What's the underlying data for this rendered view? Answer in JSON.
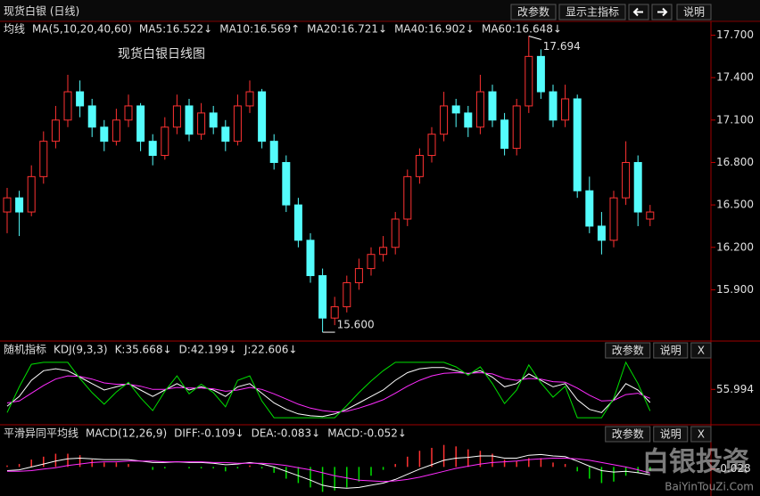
{
  "header": {
    "title": "现货白银 (日线)",
    "buttons": [
      "改参数",
      "显示主指标",
      "说明"
    ]
  },
  "chart_data": [
    {
      "type": "candlestick",
      "legend_label": "均线",
      "legend_params": "MA(5,10,20,40,60)",
      "ma": [
        {
          "name": "MA5:16.522↓",
          "color": "#ffffff"
        },
        {
          "name": "MA10:16.569↑",
          "color": "#ff2cff"
        },
        {
          "name": "MA20:16.721↓",
          "color": "#00e000"
        },
        {
          "name": "MA40:16.902↓",
          "color": "#3030ff"
        },
        {
          "name": "MA60:16.648↓",
          "color": "#ff8c1a"
        }
      ],
      "annotation": "现货白银日线图",
      "up_color": "#ff3232",
      "down_color": "#54fcfc",
      "open": [
        16.45,
        16.55,
        16.45,
        16.7,
        16.95,
        17.1,
        17.3,
        17.2,
        17.05,
        16.95,
        17.1,
        17.2,
        16.95,
        16.85,
        17.05,
        17.2,
        17.0,
        17.15,
        17.05,
        16.95,
        17.2,
        17.3,
        16.95,
        16.8,
        16.5,
        16.25,
        16.0,
        15.7,
        15.78,
        15.95,
        16.05,
        16.15,
        16.2,
        16.4,
        16.7,
        16.85,
        17.0,
        17.2,
        17.15,
        17.05,
        17.3,
        17.1,
        16.9,
        17.2,
        17.55,
        17.3,
        17.1,
        17.25,
        16.6,
        16.35,
        16.25,
        16.55,
        16.8,
        16.4
      ],
      "high": [
        16.62,
        16.6,
        16.78,
        17.02,
        17.2,
        17.42,
        17.38,
        17.25,
        17.1,
        17.18,
        17.28,
        17.22,
        17.0,
        17.12,
        17.28,
        17.25,
        17.22,
        17.2,
        17.1,
        17.28,
        17.38,
        17.32,
        17.0,
        16.85,
        16.55,
        16.3,
        16.05,
        15.85,
        16.0,
        16.12,
        16.2,
        16.28,
        16.45,
        16.75,
        16.9,
        17.05,
        17.3,
        17.25,
        17.2,
        17.42,
        17.35,
        17.15,
        17.25,
        17.694,
        17.6,
        17.35,
        17.35,
        17.28,
        16.7,
        16.45,
        16.6,
        16.95,
        16.85,
        16.5
      ],
      "low": [
        16.3,
        16.28,
        16.42,
        16.65,
        16.9,
        17.05,
        17.12,
        16.98,
        16.88,
        16.92,
        17.05,
        16.88,
        16.78,
        16.82,
        17.0,
        16.95,
        16.96,
        17.0,
        16.88,
        16.92,
        17.15,
        16.9,
        16.75,
        16.45,
        16.2,
        15.95,
        15.6,
        15.65,
        15.74,
        15.9,
        16.0,
        16.1,
        16.15,
        16.35,
        16.65,
        16.8,
        16.95,
        17.05,
        16.98,
        17.0,
        17.05,
        16.85,
        16.85,
        17.15,
        17.25,
        17.05,
        17.05,
        16.55,
        16.3,
        16.15,
        16.2,
        16.5,
        16.35,
        16.35
      ],
      "close": [
        16.55,
        16.45,
        16.7,
        16.95,
        17.1,
        17.3,
        17.2,
        17.05,
        16.95,
        17.1,
        17.2,
        16.95,
        16.85,
        17.05,
        17.2,
        17.0,
        17.15,
        17.05,
        16.95,
        17.2,
        17.3,
        16.95,
        16.8,
        16.5,
        16.25,
        16.0,
        15.7,
        15.78,
        15.95,
        16.05,
        16.15,
        16.2,
        16.4,
        16.7,
        16.85,
        17.0,
        17.2,
        17.15,
        17.05,
        17.3,
        17.1,
        16.9,
        17.2,
        17.55,
        17.3,
        17.1,
        17.25,
        16.6,
        16.35,
        16.25,
        16.55,
        16.8,
        16.45,
        16.45
      ],
      "annotations": [
        {
          "index": 43,
          "value": 17.694,
          "label": "17.694"
        },
        {
          "index": 26,
          "value": 15.6,
          "label": "15.600"
        }
      ],
      "ylim": [
        15.55,
        17.76
      ],
      "yticks": [
        {
          "value": 17.7,
          "label": "17.700"
        },
        {
          "value": 17.4,
          "label": "17.400"
        },
        {
          "value": 17.1,
          "label": "17.100"
        },
        {
          "value": 16.8,
          "label": "16.800"
        },
        {
          "value": 16.5,
          "label": "16.500"
        },
        {
          "value": 16.2,
          "label": "16.200"
        },
        {
          "value": 15.9,
          "label": "15.900"
        }
      ]
    },
    {
      "type": "line",
      "title": "随机指标",
      "subtitle": "KDJ(9,3,3)",
      "buttons": [
        "改参数",
        "说明",
        "X"
      ],
      "series": [
        {
          "name": "K:35.668↓",
          "color": "#ffffff",
          "values": [
            30,
            45,
            70,
            85,
            88,
            85,
            75,
            65,
            55,
            60,
            65,
            55,
            45,
            55,
            65,
            55,
            60,
            55,
            45,
            60,
            65,
            50,
            35,
            25,
            18,
            15,
            14,
            18,
            25,
            35,
            45,
            55,
            70,
            82,
            88,
            90,
            90,
            85,
            80,
            85,
            75,
            60,
            65,
            80,
            70,
            60,
            65,
            40,
            25,
            20,
            40,
            65,
            55,
            35.668
          ]
        },
        {
          "name": "D:42.199↓",
          "color": "#ff2cff",
          "values": [
            35,
            38,
            50,
            62,
            72,
            77,
            76,
            72,
            66,
            64,
            64,
            61,
            56,
            56,
            59,
            58,
            58,
            57,
            53,
            55,
            59,
            56,
            49,
            41,
            33,
            27,
            23,
            21,
            22,
            27,
            33,
            40,
            50,
            61,
            70,
            77,
            81,
            82,
            81,
            82,
            80,
            73,
            70,
            73,
            72,
            68,
            67,
            58,
            47,
            38,
            39,
            48,
            50,
            42.199
          ]
        },
        {
          "name": "J:22.606↓",
          "color": "#00e000",
          "values": [
            20,
            60,
            95,
            98,
            98,
            98,
            73,
            51,
            33,
            52,
            67,
            43,
            23,
            53,
            77,
            49,
            64,
            51,
            29,
            70,
            77,
            38,
            12,
            12,
            12,
            12,
            12,
            12,
            31,
            51,
            69,
            85,
            98,
            98,
            98,
            98,
            98,
            91,
            78,
            91,
            65,
            34,
            55,
            94,
            66,
            44,
            61,
            12,
            12,
            12,
            42,
            98,
            65,
            22.606
          ]
        }
      ],
      "ylim": [
        8,
        102
      ],
      "yticks": [
        55.994
      ]
    },
    {
      "type": "line",
      "title": "平滑异同平均线",
      "subtitle": "MACD(12,26,9)",
      "buttons": [
        "改参数",
        "说明",
        "X"
      ],
      "series": [
        {
          "name": "DIFF:-0.109↓",
          "color": "#ffffff",
          "values": [
            -0.05,
            -0.04,
            0,
            0.04,
            0.08,
            0.11,
            0.12,
            0.11,
            0.1,
            0.1,
            0.1,
            0.08,
            0.06,
            0.06,
            0.07,
            0.06,
            0.06,
            0.05,
            0.03,
            0.04,
            0.06,
            0.04,
            0,
            -0.06,
            -0.12,
            -0.18,
            -0.25,
            -0.28,
            -0.29,
            -0.28,
            -0.25,
            -0.22,
            -0.17,
            -0.1,
            -0.03,
            0.03,
            0.09,
            0.12,
            0.13,
            0.15,
            0.15,
            0.12,
            0.12,
            0.16,
            0.17,
            0.15,
            0.14,
            0.08,
            0.01,
            -0.05,
            -0.07,
            -0.06,
            -0.08,
            -0.109
          ]
        },
        {
          "name": "DEA:-0.083↓",
          "color": "#ff2cff",
          "values": [
            -0.06,
            -0.06,
            -0.05,
            -0.03,
            -0.01,
            0.02,
            0.04,
            0.06,
            0.07,
            0.07,
            0.08,
            0.08,
            0.08,
            0.07,
            0.07,
            0.07,
            0.07,
            0.06,
            0.06,
            0.05,
            0.05,
            0.05,
            0.04,
            0.02,
            -0.01,
            -0.04,
            -0.08,
            -0.12,
            -0.15,
            -0.18,
            -0.19,
            -0.2,
            -0.19,
            -0.17,
            -0.14,
            -0.1,
            -0.06,
            -0.02,
            0.01,
            0.04,
            0.06,
            0.07,
            0.08,
            0.1,
            0.11,
            0.12,
            0.12,
            0.11,
            0.09,
            0.06,
            0.03,
            0.0,
            -0.04,
            -0.083
          ]
        },
        {
          "name": "MACD:-0.052↓",
          "color": "#ff3232",
          "negative_color": "#00e000",
          "style": "bar",
          "values": [
            0.02,
            0.04,
            0.1,
            0.14,
            0.18,
            0.18,
            0.16,
            0.1,
            0.06,
            0.06,
            0.04,
            0,
            -0.04,
            -0.02,
            0,
            -0.02,
            -0.02,
            -0.02,
            -0.06,
            -0.02,
            0.02,
            -0.02,
            -0.08,
            -0.16,
            -0.22,
            -0.28,
            -0.34,
            -0.32,
            -0.28,
            -0.2,
            -0.12,
            -0.04,
            0.04,
            0.14,
            0.22,
            0.26,
            0.3,
            0.28,
            0.24,
            0.22,
            0.18,
            0.1,
            0.08,
            0.12,
            0.12,
            0.06,
            0.04,
            -0.06,
            -0.16,
            -0.22,
            -0.2,
            -0.12,
            -0.08,
            -0.052
          ]
        }
      ],
      "ylim": [
        -0.36,
        0.32
      ],
      "yticks": [
        -0.028
      ]
    }
  ],
  "watermark": {
    "title": "白银投资",
    "url": "BaiYinTouZi.Com"
  }
}
